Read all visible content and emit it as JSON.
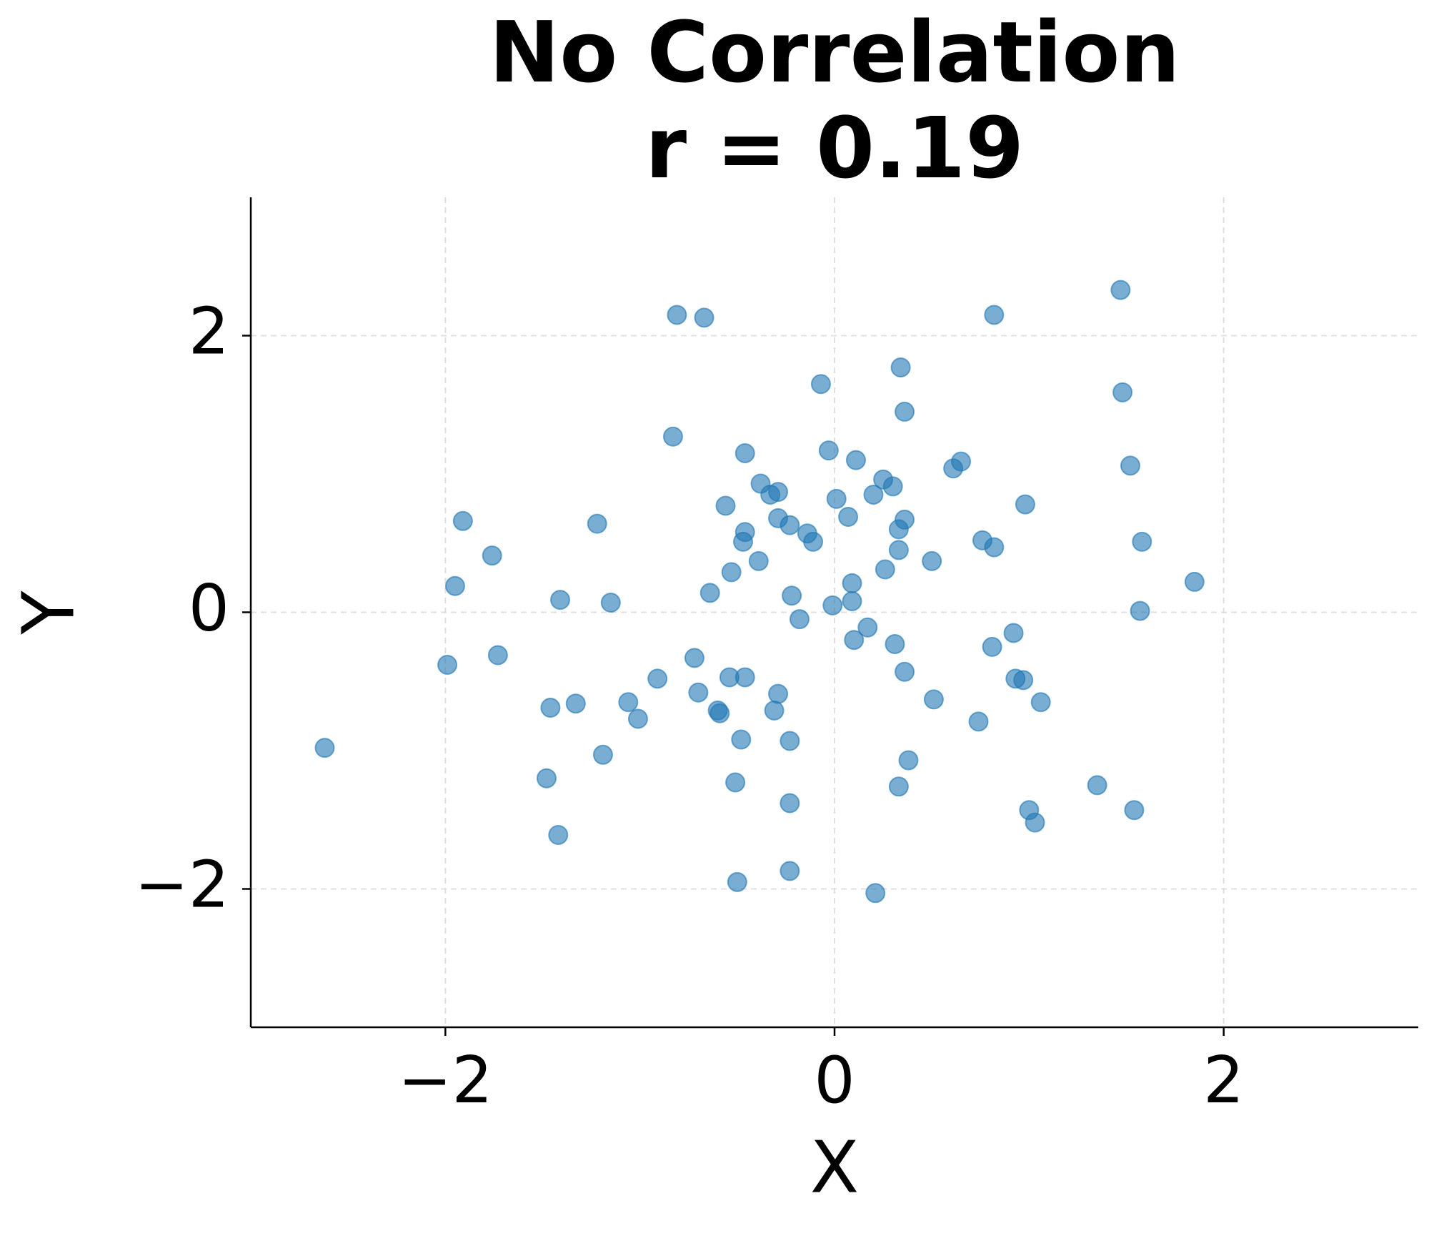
{
  "chart_data": {
    "type": "scatter",
    "title": "No Correlation",
    "subtitle": "r = 0.19",
    "x_label": "X",
    "y_label": "Y",
    "color": "#1f77b4",
    "grid": true,
    "xlim": [
      -3,
      3
    ],
    "ylim": [
      -3,
      3
    ],
    "xticks": [
      {
        "value": -2,
        "label": "−2"
      },
      0,
      2
    ],
    "yticks": [
      {
        "value": -2,
        "label": "−2"
      },
      0,
      2
    ],
    "x": [
      -0.81,
      -0.67,
      0.82,
      1.47,
      0.34,
      -0.07,
      1.48,
      0.36,
      -0.83,
      -0.46,
      -0.03,
      0.11,
      0.65,
      0.61,
      1.52,
      -0.38,
      -0.33,
      -0.29,
      0.25,
      0.3,
      0.2,
      0.01,
      -0.56,
      0.98,
      -1.91,
      -1.22,
      -0.29,
      -0.23,
      0.07,
      0.36,
      -0.46,
      -0.47,
      -0.14,
      -0.11,
      0.33,
      0.76,
      0.82,
      1.58,
      -1.76,
      -0.39,
      0.33,
      0.5,
      -0.53,
      0.26,
      -1.95,
      -0.64,
      0.09,
      1.85,
      -1.41,
      -1.15,
      -0.22,
      -0.01,
      0.09,
      1.57,
      -0.18,
      0.17,
      0.92,
      0.1,
      0.31,
      0.81,
      -1.99,
      -1.73,
      -0.72,
      0.36,
      -0.91,
      -0.54,
      -0.46,
      0.93,
      0.97,
      -0.7,
      -0.29,
      0.51,
      1.06,
      -1.46,
      -1.33,
      -1.06,
      -0.6,
      -0.59,
      -0.31,
      -1.01,
      0.74,
      -2.62,
      -0.48,
      -0.23,
      -1.19,
      0.38,
      -1.48,
      -0.51,
      0.33,
      1.35,
      -0.23,
      1.0,
      1.54,
      1.03,
      -1.42,
      -0.23,
      -0.5,
      0.21
    ],
    "y": [
      2.15,
      2.13,
      2.15,
      2.33,
      1.77,
      1.65,
      1.59,
      1.45,
      1.27,
      1.15,
      1.17,
      1.1,
      1.09,
      1.04,
      1.06,
      0.93,
      0.85,
      0.87,
      0.96,
      0.91,
      0.85,
      0.82,
      0.77,
      0.78,
      0.66,
      0.64,
      0.68,
      0.63,
      0.69,
      0.67,
      0.58,
      0.51,
      0.57,
      0.51,
      0.6,
      0.52,
      0.47,
      0.51,
      0.41,
      0.37,
      0.45,
      0.37,
      0.29,
      0.31,
      0.19,
      0.14,
      0.21,
      0.22,
      0.09,
      0.07,
      0.12,
      0.05,
      0.08,
      0.01,
      -0.05,
      -0.11,
      -0.15,
      -0.2,
      -0.23,
      -0.25,
      -0.38,
      -0.31,
      -0.33,
      -0.43,
      -0.48,
      -0.47,
      -0.47,
      -0.48,
      -0.49,
      -0.58,
      -0.59,
      -0.63,
      -0.65,
      -0.69,
      -0.66,
      -0.65,
      -0.71,
      -0.73,
      -0.71,
      -0.77,
      -0.79,
      -0.98,
      -0.92,
      -0.93,
      -1.03,
      -1.07,
      -1.2,
      -1.23,
      -1.26,
      -1.25,
      -1.38,
      -1.43,
      -1.43,
      -1.52,
      -1.61,
      -1.87,
      -1.95,
      -2.03
    ]
  }
}
